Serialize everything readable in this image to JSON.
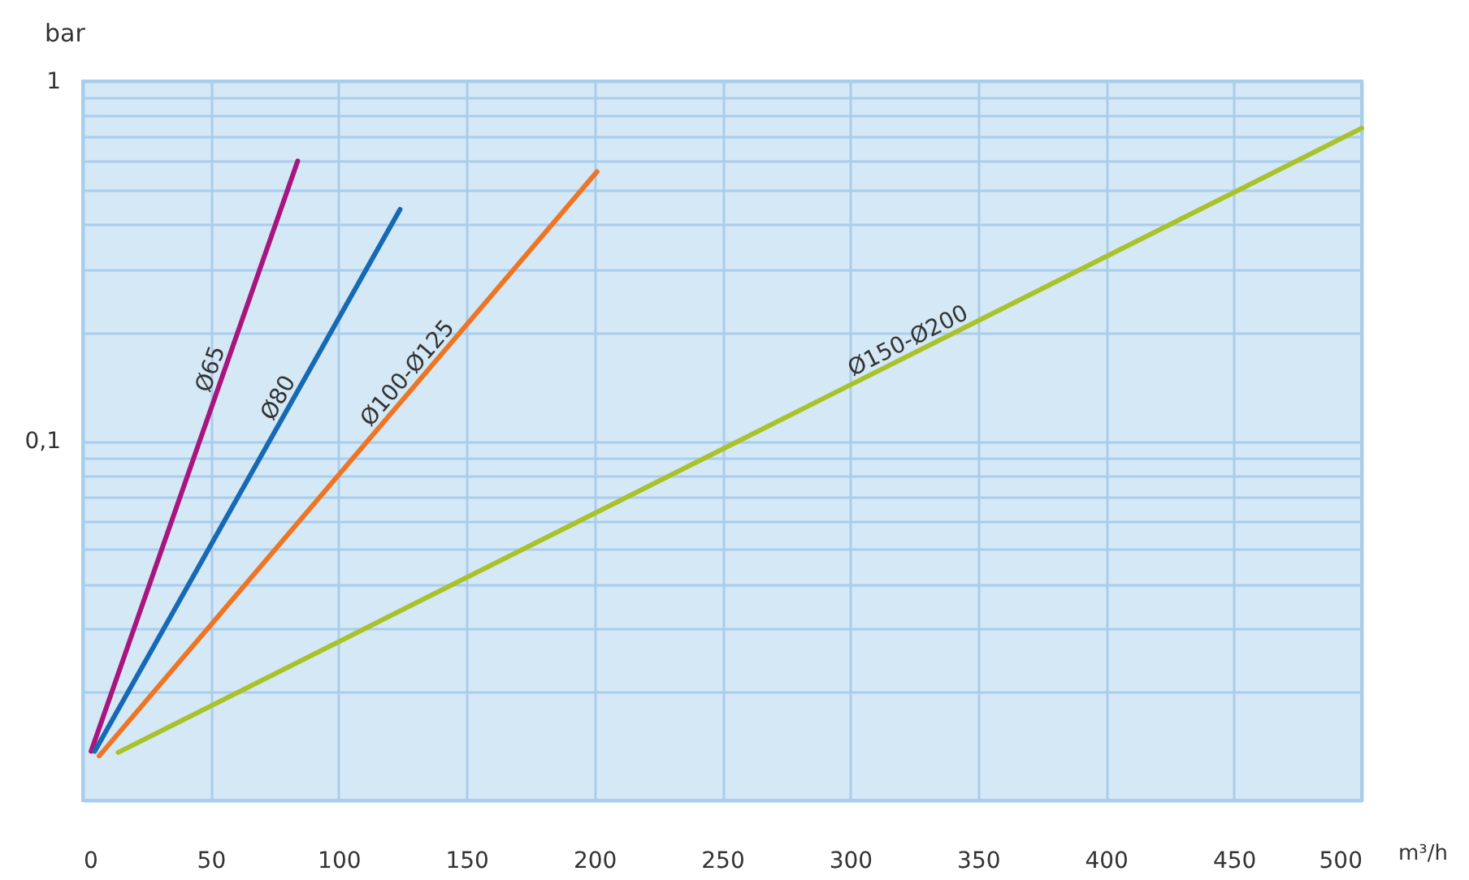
{
  "chart_data": {
    "type": "line",
    "xlabel": "m³/h",
    "ylabel": "bar",
    "log": "y",
    "grid": true,
    "legend": false,
    "line_style": "solid",
    "marker": "none",
    "xlim": [
      0,
      500
    ],
    "xticks": [
      0,
      50,
      100,
      150,
      200,
      250,
      300,
      350,
      400,
      450,
      500
    ],
    "ylim": [
      0.01,
      1
    ],
    "yticks": [
      {
        "value": 0.01,
        "label": null
      },
      {
        "value": 0.02,
        "label": null
      },
      {
        "value": 0.03,
        "label": null
      },
      {
        "value": 0.04,
        "label": null
      },
      {
        "value": 0.05,
        "label": null
      },
      {
        "value": 0.06,
        "label": null
      },
      {
        "value": 0.07,
        "label": null
      },
      {
        "value": 0.08,
        "label": null
      },
      {
        "value": 0.09,
        "label": null
      },
      {
        "value": 0.1,
        "label": "0,1"
      },
      {
        "value": 0.2,
        "label": null
      },
      {
        "value": 0.3,
        "label": null
      },
      {
        "value": 0.4,
        "label": null
      },
      {
        "value": 0.5,
        "label": null
      },
      {
        "value": 0.6,
        "label": null
      },
      {
        "value": 0.7,
        "label": null
      },
      {
        "value": 0.8,
        "label": null
      },
      {
        "value": 0.9,
        "label": null
      },
      1
    ],
    "series": [
      {
        "name": "Ø65",
        "color": "#a8157f",
        "x": [
          3.2,
          84
        ],
        "values": [
          0.0137,
          0.6
        ]
      },
      {
        "name": "Ø80",
        "color": "#1669b4",
        "x": [
          4.6,
          124
        ],
        "values": [
          0.0137,
          0.44
        ]
      },
      {
        "name": "Ø100-Ø125",
        "color": "#ee7523",
        "x": [
          6.4,
          201
        ],
        "values": [
          0.0133,
          0.56
        ]
      },
      {
        "name": "Ø150-Ø200",
        "color": "#a9c22a",
        "x": [
          13.8,
          500
        ],
        "values": [
          0.0136,
          0.74
        ]
      }
    ]
  }
}
